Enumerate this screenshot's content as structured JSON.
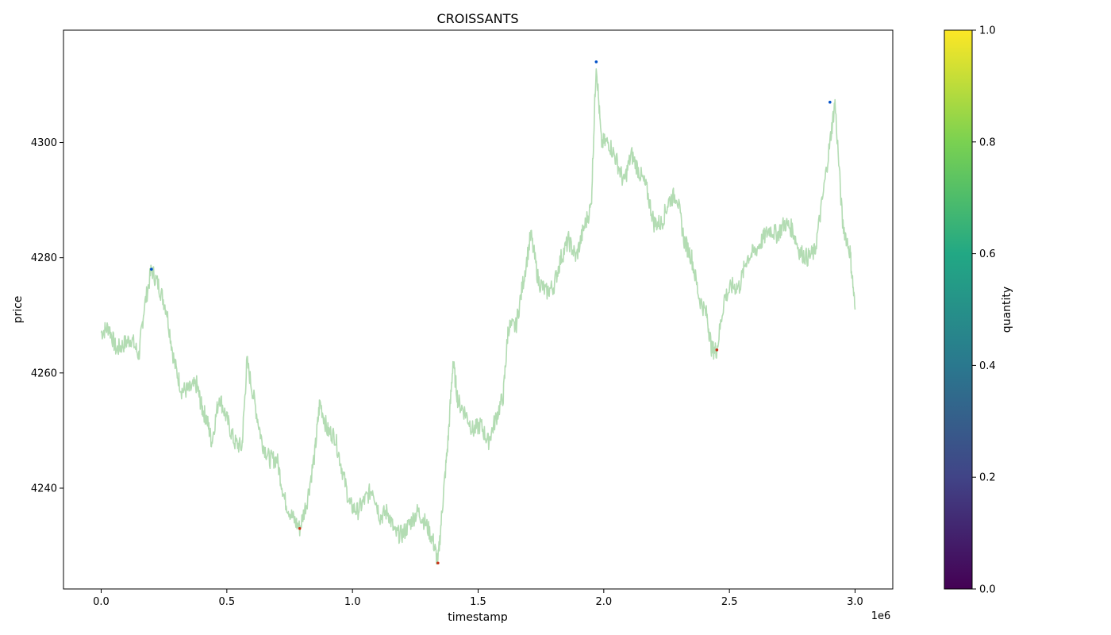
{
  "chart_data": {
    "type": "line",
    "title": "CROISSANTS",
    "xlabel": "timestamp",
    "ylabel": "price",
    "x_offset_label": "1e6",
    "xlim": [
      -150000,
      3150000
    ],
    "ylim": [
      4222.5,
      4319.5
    ],
    "x_ticks": [
      0,
      0.5,
      1.0,
      1.5,
      2.0,
      2.5,
      3.0
    ],
    "x_tick_labels": [
      "0.0",
      "0.5",
      "1.0",
      "1.5",
      "2.0",
      "2.5",
      "3.0"
    ],
    "y_ticks": [
      4240,
      4260,
      4280,
      4300
    ],
    "y_tick_labels": [
      "4240",
      "4260",
      "4280",
      "4300"
    ],
    "grid": false,
    "series": [
      {
        "line_color": "#b3dcb3",
        "x": [
          0,
          30000,
          60000,
          90000,
          120000,
          150000,
          170000,
          200000,
          230000,
          260000,
          290000,
          320000,
          350000,
          380000,
          400000,
          420000,
          440000,
          470000,
          500000,
          530000,
          560000,
          580000,
          610000,
          640000,
          670000,
          700000,
          730000,
          760000,
          790000,
          820000,
          850000,
          870000,
          900000,
          930000,
          960000,
          990000,
          1020000,
          1050000,
          1080000,
          1110000,
          1140000,
          1170000,
          1200000,
          1230000,
          1260000,
          1290000,
          1320000,
          1340000,
          1360000,
          1380000,
          1400000,
          1420000,
          1450000,
          1480000,
          1510000,
          1540000,
          1570000,
          1600000,
          1620000,
          1650000,
          1680000,
          1710000,
          1740000,
          1770000,
          1800000,
          1830000,
          1860000,
          1890000,
          1920000,
          1950000,
          1970000,
          1990000,
          2020000,
          2050000,
          2080000,
          2110000,
          2140000,
          2170000,
          2200000,
          2230000,
          2260000,
          2290000,
          2320000,
          2350000,
          2380000,
          2410000,
          2430000,
          2450000,
          2480000,
          2510000,
          2540000,
          2570000,
          2600000,
          2630000,
          2660000,
          2690000,
          2720000,
          2750000,
          2780000,
          2810000,
          2840000,
          2870000,
          2900000,
          2920000,
          2950000,
          2980000,
          3000000
        ],
        "y": [
          4267,
          4268,
          4264,
          4265,
          4266,
          4263,
          4271,
          4278,
          4275,
          4271,
          4262,
          4257,
          4257,
          4258,
          4254,
          4252,
          4248,
          4256,
          4252,
          4248,
          4247,
          4262,
          4255,
          4248,
          4245,
          4245,
          4238,
          4235,
          4233,
          4238,
          4246,
          4255,
          4250,
          4249,
          4243,
          4237,
          4236,
          4238,
          4240,
          4235,
          4236,
          4232,
          4232,
          4234,
          4236,
          4234,
          4231,
          4227,
          4238,
          4248,
          4262,
          4255,
          4253,
          4250,
          4251,
          4248,
          4252,
          4256,
          4268,
          4268,
          4276,
          4284,
          4276,
          4274,
          4275,
          4280,
          4283,
          4280,
          4285,
          4289,
          4314,
          4300,
          4300,
          4297,
          4293,
          4298,
          4295,
          4292,
          4286,
          4286,
          4290,
          4291,
          4283,
          4280,
          4273,
          4270,
          4264,
          4264,
          4273,
          4275,
          4275,
          4280,
          4281,
          4283,
          4285,
          4284,
          4286,
          4285,
          4281,
          4280,
          4281,
          4290,
          4300,
          4307,
          4286,
          4281,
          4271
        ]
      }
    ],
    "markers": [
      {
        "x": 200000,
        "y": 4278,
        "color": "#0050c8"
      },
      {
        "x": 790000,
        "y": 4233,
        "color": "#c83218"
      },
      {
        "x": 1340000,
        "y": 4227,
        "color": "#c83218"
      },
      {
        "x": 1970000,
        "y": 4314,
        "color": "#0050c8"
      },
      {
        "x": 2450000,
        "y": 4264,
        "color": "#c83218"
      },
      {
        "x": 2900000,
        "y": 4307,
        "color": "#0050c8"
      }
    ],
    "colorbar": {
      "label": "quantity",
      "colormap": "viridis",
      "range": [
        0,
        1
      ],
      "ticks": [
        "0.0",
        "0.2",
        "0.4",
        "0.6",
        "0.8",
        "1.0"
      ],
      "colors": [
        "#440154",
        "#414487",
        "#2a788e",
        "#22a884",
        "#7ad151",
        "#fde725"
      ]
    }
  }
}
